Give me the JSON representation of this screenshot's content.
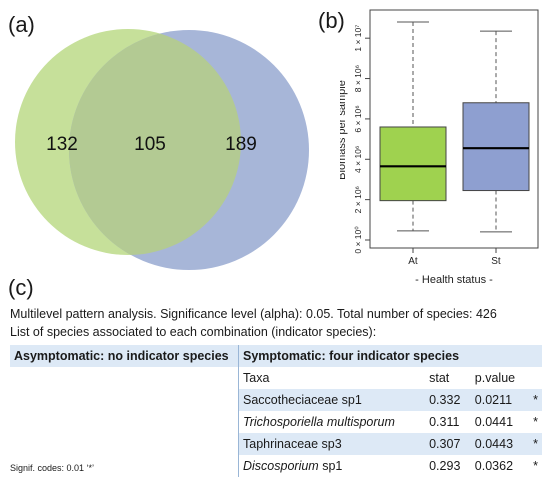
{
  "panels": {
    "a": "(a)",
    "b": "(b)",
    "c": "(c)"
  },
  "chart_data": [
    {
      "type": "venn",
      "sets": [
        {
          "only": 132,
          "color": "#c6e09a"
        },
        {
          "only": 189,
          "color": "#a7b6d8"
        }
      ],
      "overlap": 105,
      "overlap_color": "#b3ca93"
    },
    {
      "type": "boxplot",
      "title": "",
      "xlabel": "- Health status -",
      "ylabel": "Biomass per sample",
      "categories": [
        "At",
        "St"
      ],
      "ylim": [
        0,
        11000000
      ],
      "yticks": [
        {
          "value": 0,
          "label": "0 × 10⁰"
        },
        {
          "value": 2000000,
          "label": "2 × 10⁶"
        },
        {
          "value": 4000000,
          "label": "4 × 10⁶"
        },
        {
          "value": 6000000,
          "label": "6 × 10⁶"
        },
        {
          "value": 8000000,
          "label": "8 × 10⁶"
        },
        {
          "value": 10000000,
          "label": "1 × 10⁷"
        }
      ],
      "boxes": [
        {
          "name": "At",
          "whisker_low": 450000,
          "q1": 1950000,
          "median": 3650000,
          "q3": 5600000,
          "whisker_high": 10800000,
          "color": "#9fd24f"
        },
        {
          "name": "St",
          "whisker_low": 400000,
          "q1": 2450000,
          "median": 4550000,
          "q3": 6800000,
          "whisker_high": 10350000,
          "color": "#8e9fd0"
        }
      ]
    }
  ],
  "text": {
    "line1": "Multilevel pattern analysis.  Significance level (alpha): 0.05.  Total number of species: 426",
    "line2": "List of species associated to each combination (indicator species):",
    "asym_header": "Asymptomatic: no indicator species",
    "sym_header": "Symptomatic: four indicator species",
    "col_taxa": "Taxa",
    "col_stat": "stat",
    "col_pvalue": "p.value",
    "signif": "Signif. codes: 0.01 ‘*’"
  },
  "species": [
    {
      "name": "Saccotheciaceae sp1",
      "italic": "",
      "rest": "",
      "stat": "0.332",
      "pvalue": "0.0211",
      "code": "*"
    },
    {
      "name": "",
      "italic": "Trichosporiella multisporum",
      "rest": "",
      "stat": "0.311",
      "pvalue": "0.0441",
      "code": "*"
    },
    {
      "name": "Taphrinaceae sp3",
      "italic": "",
      "rest": "",
      "stat": "0.307",
      "pvalue": "0.0443",
      "code": "*"
    },
    {
      "name": "",
      "italic": "Discosporium",
      "rest": " sp1",
      "stat": "0.293",
      "pvalue": "0.0362",
      "code": "*"
    }
  ]
}
